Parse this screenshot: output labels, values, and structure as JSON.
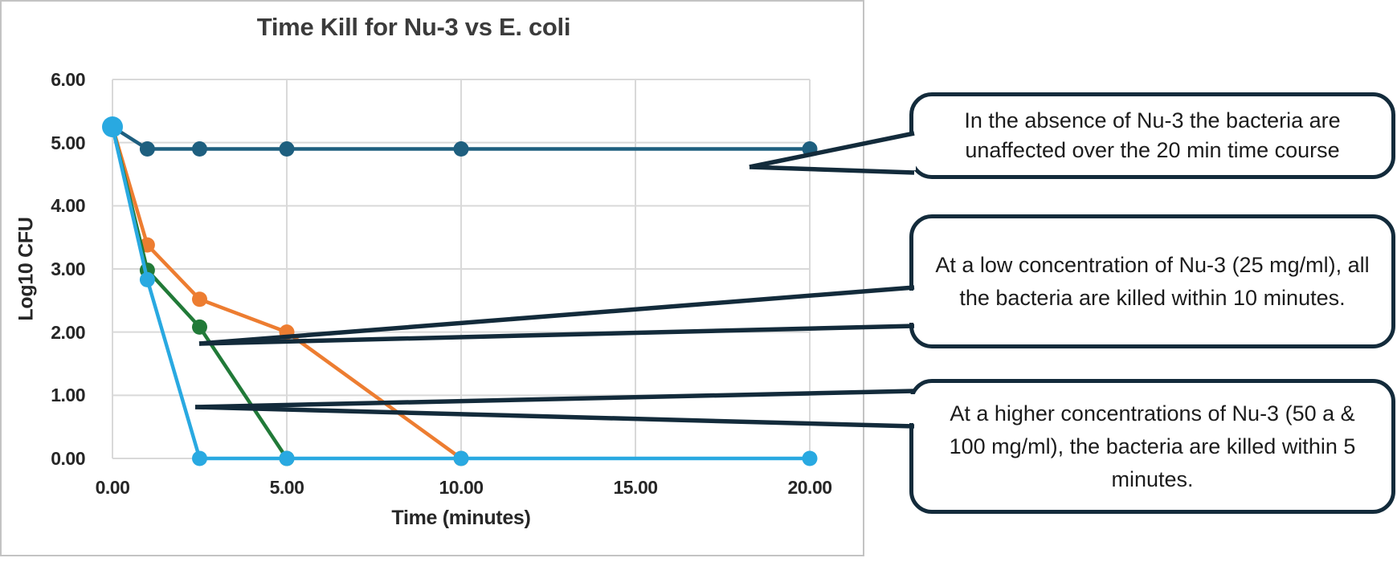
{
  "chart_data": {
    "type": "line",
    "title": "Time Kill for Nu-3 vs E. coli",
    "xlabel": "Time (minutes)",
    "ylabel": "Log10 CFU",
    "xlim": [
      0,
      20
    ],
    "ylim": [
      0,
      6
    ],
    "x_ticks": [
      "0.00",
      "5.00",
      "10.00",
      "15.00",
      "20.00"
    ],
    "y_ticks": [
      "0.00",
      "1.00",
      "2.00",
      "3.00",
      "4.00",
      "5.00",
      "6.00"
    ],
    "grid": true,
    "legend": "none",
    "series": [
      {
        "name": "no-nu-3-control",
        "color": "#1E5F7F",
        "x": [
          0,
          1,
          2.5,
          5,
          10,
          20
        ],
        "y": [
          5.25,
          4.9,
          4.9,
          4.9,
          4.9,
          4.9
        ]
      },
      {
        "name": "nu-3-25-mg-ml",
        "color": "#ED7D31",
        "x": [
          0,
          1,
          2.5,
          5,
          10
        ],
        "y": [
          5.25,
          3.38,
          2.52,
          2.0,
          0
        ]
      },
      {
        "name": "nu-3-50-mg-ml",
        "color": "#217A38",
        "x": [
          0,
          1,
          2.5,
          5
        ],
        "y": [
          5.25,
          2.98,
          2.08,
          0
        ]
      },
      {
        "name": "nu-3-100-mg-ml",
        "color": "#29A9E1",
        "x": [
          0,
          1,
          2.5,
          5,
          10,
          20
        ],
        "y": [
          5.25,
          2.83,
          0,
          0,
          0,
          0
        ]
      }
    ],
    "start_point_marker": {
      "x": 0,
      "y": 5.25,
      "color": "#29A9E1"
    }
  },
  "callouts": [
    {
      "text": "In the absence of Nu-3 the bacteria are unaffected over the 20 min time course"
    },
    {
      "text": "At a low concentration of Nu-3 (25 mg/ml), all the bacteria are killed within 10 minutes."
    },
    {
      "text": "At a higher concentrations of Nu-3 (50 a & 100 mg/ml), the bacteria are killed within 5 minutes."
    }
  ],
  "colors": {
    "callout_border": "#132B3B",
    "gridline": "#D9D9D9",
    "panel_border": "#C3C3C3",
    "axis_text": "#262626",
    "title_text": "#3B3B3B",
    "background": "#FFFFFF"
  }
}
